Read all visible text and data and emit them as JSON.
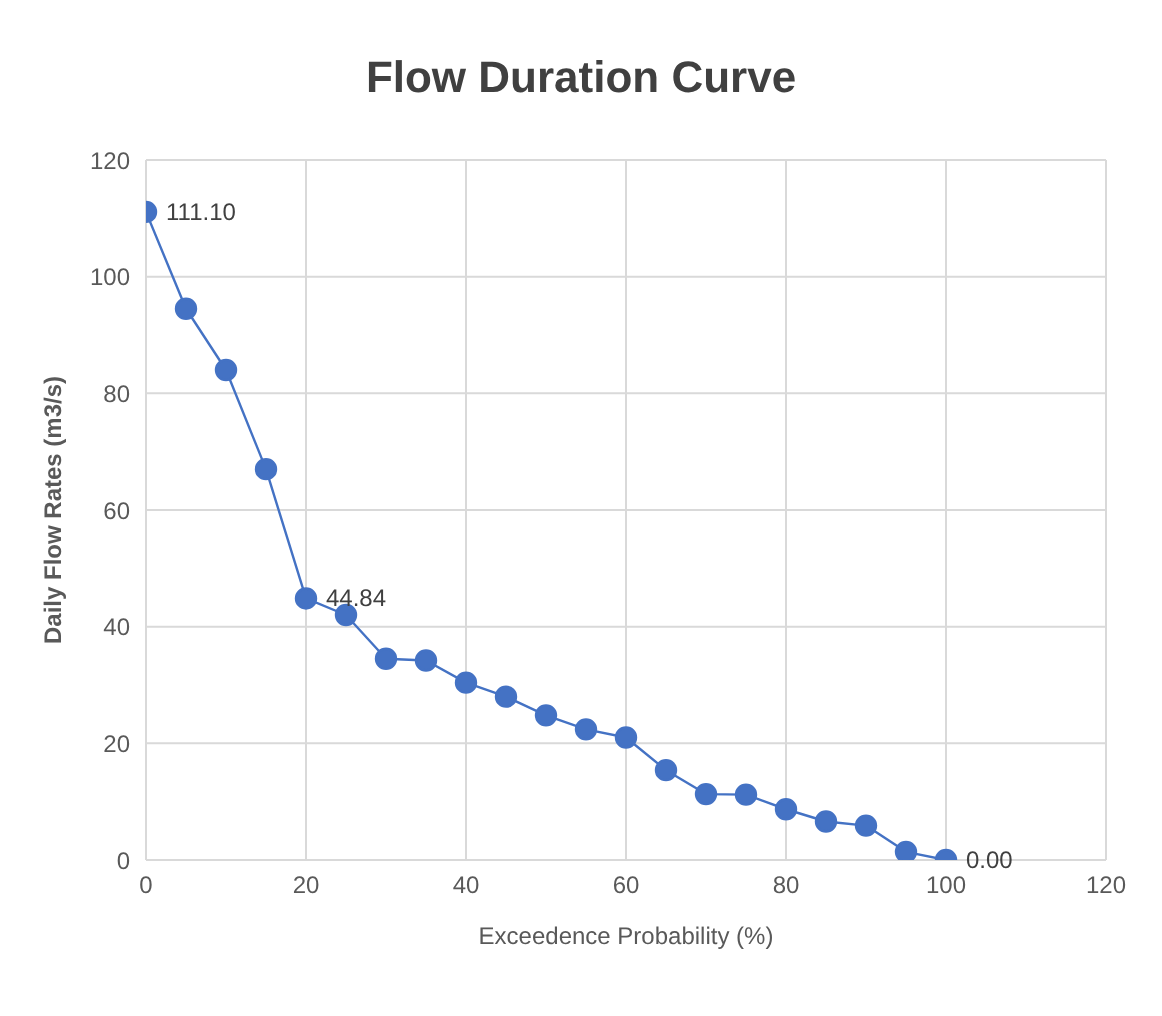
{
  "chart_data": {
    "type": "line",
    "title": "Flow Duration Curve",
    "xlabel": "Exceedence Probability (%)",
    "ylabel": "Daily Flow Rates (m3/s)",
    "x": [
      0,
      5,
      10,
      15,
      20,
      25,
      30,
      35,
      40,
      45,
      50,
      55,
      60,
      65,
      70,
      75,
      80,
      85,
      90,
      95,
      100
    ],
    "series": [
      {
        "color": "#4472c4",
        "values": [
          111.1,
          94.5,
          84,
          67,
          44.84,
          42,
          34.5,
          34.2,
          30.4,
          28,
          24.8,
          22.4,
          21,
          15.4,
          11.3,
          11.2,
          8.7,
          6.6,
          5.9,
          1.4,
          0
        ],
        "value_labels": [
          "111.10",
          null,
          null,
          null,
          "44.84",
          null,
          null,
          null,
          null,
          null,
          null,
          null,
          null,
          null,
          null,
          null,
          null,
          null,
          null,
          null,
          "0.00"
        ]
      }
    ],
    "xlim": [
      0,
      120
    ],
    "xticks": [
      0,
      20,
      40,
      60,
      80,
      100,
      120
    ],
    "ylim": [
      0,
      120
    ],
    "yticks": [
      0,
      20,
      40,
      60,
      80,
      100,
      120
    ],
    "grid": true,
    "marker": "circle",
    "line_style": "solid"
  }
}
